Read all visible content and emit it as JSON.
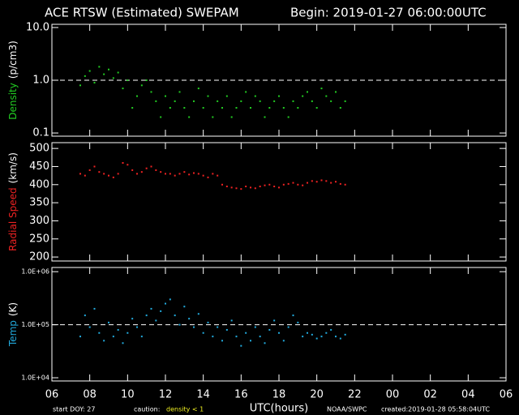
{
  "header": {
    "title": "ACE RTSW (Estimated) SWEPAM",
    "begin": "Begin: 2019-01-27 06:00:00UTC"
  },
  "footer": {
    "start": "start DOY:  27",
    "caution": "caution:",
    "caution_note": "density < 1",
    "source": "NOAA/SWPC",
    "created": "created:2019-01-28 05:58:04UTC"
  },
  "chart_data": [
    {
      "type": "scatter",
      "ylabel": "Density",
      "yunit": "(p/cm3)",
      "color": "#22cc22",
      "log": true,
      "ylim": [
        0.087,
        11.5
      ],
      "yticks": [
        {
          "value": 10,
          "label": "10.0"
        },
        {
          "value": 1,
          "label": "1.0"
        },
        0.1
      ],
      "refline": 1,
      "xlim": [
        6,
        30
      ],
      "x": [
        7.5,
        7.75,
        8,
        8.25,
        8.5,
        8.75,
        9,
        9.25,
        9.5,
        9.75,
        10,
        10.25,
        10.5,
        10.75,
        11,
        11.25,
        11.5,
        11.75,
        12,
        12.25,
        12.5,
        12.75,
        13,
        13.25,
        13.5,
        13.75,
        14,
        14.25,
        14.5,
        14.75,
        15,
        15.25,
        15.5,
        15.75,
        16,
        16.25,
        16.5,
        16.75,
        17,
        17.25,
        17.5,
        17.75,
        18,
        18.25,
        18.5,
        18.75,
        19,
        19.25,
        19.5,
        19.75,
        20,
        20.25,
        20.5,
        20.75,
        21,
        21.25,
        21.5
      ],
      "values": [
        0.8,
        1.2,
        1.5,
        0.9,
        1.8,
        1.3,
        1.6,
        1.1,
        1.4,
        0.7,
        1.0,
        0.3,
        0.5,
        0.8,
        1.0,
        0.6,
        0.4,
        0.2,
        0.5,
        0.3,
        0.4,
        0.6,
        0.3,
        0.2,
        0.4,
        0.7,
        0.3,
        0.5,
        0.2,
        0.4,
        0.3,
        0.5,
        0.2,
        0.3,
        0.4,
        0.6,
        0.3,
        0.5,
        0.4,
        0.2,
        0.3,
        0.4,
        0.5,
        0.3,
        0.2,
        0.4,
        0.3,
        0.5,
        0.6,
        0.4,
        0.3,
        0.7,
        0.5,
        0.4,
        0.6,
        0.3,
        0.4
      ]
    },
    {
      "type": "scatter",
      "ylabel": "Radial Speed",
      "yunit": "(km/s)",
      "color": "#ee2222",
      "log": false,
      "ylim": [
        189,
        516
      ],
      "yticks": [
        500,
        450,
        400,
        350,
        300,
        250,
        200
      ],
      "xlim": [
        6,
        30
      ],
      "x": [
        7.5,
        7.75,
        8,
        8.25,
        8.5,
        8.75,
        9,
        9.25,
        9.5,
        9.75,
        10,
        10.25,
        10.5,
        10.75,
        11,
        11.25,
        11.5,
        11.75,
        12,
        12.25,
        12.5,
        12.75,
        13,
        13.25,
        13.5,
        13.75,
        14,
        14.25,
        14.5,
        14.75,
        15,
        15.25,
        15.5,
        15.75,
        16,
        16.25,
        16.5,
        16.75,
        17,
        17.25,
        17.5,
        17.75,
        18,
        18.25,
        18.5,
        18.75,
        19,
        19.25,
        19.5,
        19.75,
        20,
        20.25,
        20.5,
        20.75,
        21,
        21.25,
        21.5
      ],
      "values": [
        430,
        425,
        440,
        450,
        435,
        430,
        425,
        420,
        430,
        460,
        455,
        440,
        430,
        435,
        445,
        450,
        440,
        435,
        430,
        430,
        425,
        430,
        435,
        428,
        432,
        430,
        425,
        420,
        430,
        425,
        400,
        395,
        392,
        390,
        388,
        395,
        392,
        390,
        395,
        398,
        400,
        395,
        392,
        400,
        402,
        405,
        400,
        398,
        405,
        410,
        408,
        412,
        410,
        405,
        408,
        402,
        400
      ]
    },
    {
      "type": "scatter",
      "ylabel": "Temp",
      "yunit": "(K)",
      "color": "#22aadd",
      "log": true,
      "ylim": [
        8700,
        1200000
      ],
      "yticks": [
        {
          "value": 1000000,
          "label": "1.0E+06"
        },
        {
          "value": 100000,
          "label": "1.0E+05"
        },
        {
          "value": 10000,
          "label": "1.0E+04"
        }
      ],
      "refline": 100000,
      "xlim": [
        6,
        30
      ],
      "xlabel": "UTC(hours)",
      "xticks": [
        {
          "value": 6,
          "label": "06"
        },
        {
          "value": 8,
          "label": "08"
        },
        10,
        12,
        14,
        16,
        18,
        20,
        22,
        {
          "value": 24,
          "label": "00"
        },
        {
          "value": 26,
          "label": "02"
        },
        {
          "value": 28,
          "label": "04"
        },
        {
          "value": 30,
          "label": "06"
        }
      ],
      "x": [
        7.5,
        7.75,
        8,
        8.25,
        8.5,
        8.75,
        9,
        9.25,
        9.5,
        9.75,
        10,
        10.25,
        10.5,
        10.75,
        11,
        11.25,
        11.5,
        11.75,
        12,
        12.25,
        12.5,
        12.75,
        13,
        13.25,
        13.5,
        13.75,
        14,
        14.25,
        14.5,
        14.75,
        15,
        15.25,
        15.5,
        15.75,
        16,
        16.25,
        16.5,
        16.75,
        17,
        17.25,
        17.5,
        17.75,
        18,
        18.25,
        18.5,
        18.75,
        19,
        19.25,
        19.5,
        19.75,
        20,
        20.25,
        20.5,
        20.75,
        21,
        21.25,
        21.5
      ],
      "values": [
        60000,
        150000,
        90000,
        200000,
        70000,
        50000,
        110000,
        60000,
        80000,
        45000,
        70000,
        130000,
        90000,
        60000,
        150000,
        200000,
        120000,
        180000,
        250000,
        300000,
        150000,
        100000,
        220000,
        130000,
        90000,
        160000,
        70000,
        110000,
        60000,
        90000,
        50000,
        80000,
        120000,
        60000,
        40000,
        70000,
        50000,
        90000,
        60000,
        45000,
        80000,
        120000,
        70000,
        50000,
        90000,
        150000,
        110000,
        60000,
        70000,
        65000,
        55000,
        60000,
        70000,
        80000,
        60000,
        55000,
        65000
      ]
    }
  ]
}
